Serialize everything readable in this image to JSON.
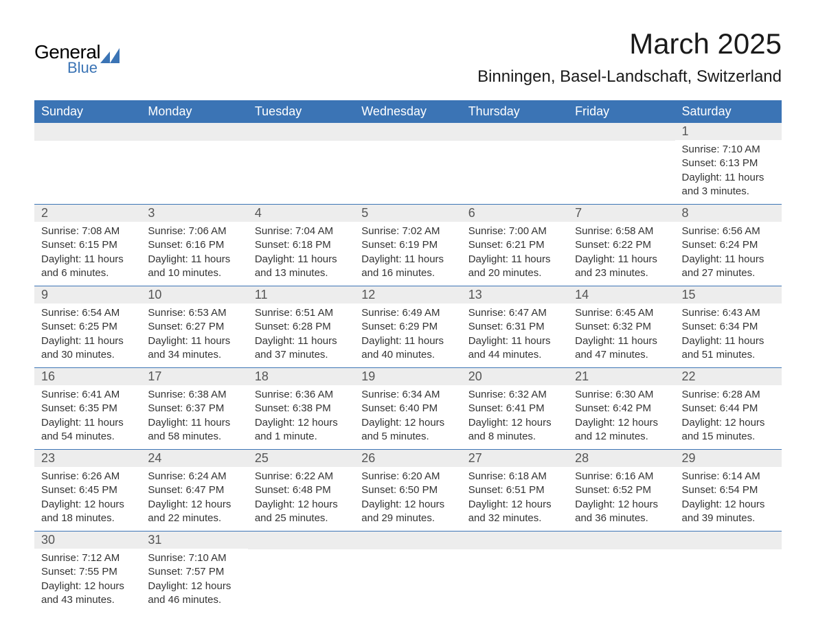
{
  "logo": {
    "text1": "General",
    "text2": "Blue",
    "icon_color": "#3b74b5"
  },
  "header": {
    "title": "March 2025",
    "location": "Binningen, Basel-Landschaft, Switzerland"
  },
  "colors": {
    "header_bg": "#3b74b5",
    "header_text": "#ffffff",
    "day_number_bg": "#ededed",
    "day_number_text": "#555555",
    "body_text": "#333333",
    "border": "#3b74b5"
  },
  "day_headers": [
    "Sunday",
    "Monday",
    "Tuesday",
    "Wednesday",
    "Thursday",
    "Friday",
    "Saturday"
  ],
  "weeks": [
    [
      {
        "empty": true
      },
      {
        "empty": true
      },
      {
        "empty": true
      },
      {
        "empty": true
      },
      {
        "empty": true
      },
      {
        "empty": true
      },
      {
        "day": "1",
        "sunrise": "Sunrise: 7:10 AM",
        "sunset": "Sunset: 6:13 PM",
        "daylight1": "Daylight: 11 hours",
        "daylight2": "and 3 minutes."
      }
    ],
    [
      {
        "day": "2",
        "sunrise": "Sunrise: 7:08 AM",
        "sunset": "Sunset: 6:15 PM",
        "daylight1": "Daylight: 11 hours",
        "daylight2": "and 6 minutes."
      },
      {
        "day": "3",
        "sunrise": "Sunrise: 7:06 AM",
        "sunset": "Sunset: 6:16 PM",
        "daylight1": "Daylight: 11 hours",
        "daylight2": "and 10 minutes."
      },
      {
        "day": "4",
        "sunrise": "Sunrise: 7:04 AM",
        "sunset": "Sunset: 6:18 PM",
        "daylight1": "Daylight: 11 hours",
        "daylight2": "and 13 minutes."
      },
      {
        "day": "5",
        "sunrise": "Sunrise: 7:02 AM",
        "sunset": "Sunset: 6:19 PM",
        "daylight1": "Daylight: 11 hours",
        "daylight2": "and 16 minutes."
      },
      {
        "day": "6",
        "sunrise": "Sunrise: 7:00 AM",
        "sunset": "Sunset: 6:21 PM",
        "daylight1": "Daylight: 11 hours",
        "daylight2": "and 20 minutes."
      },
      {
        "day": "7",
        "sunrise": "Sunrise: 6:58 AM",
        "sunset": "Sunset: 6:22 PM",
        "daylight1": "Daylight: 11 hours",
        "daylight2": "and 23 minutes."
      },
      {
        "day": "8",
        "sunrise": "Sunrise: 6:56 AM",
        "sunset": "Sunset: 6:24 PM",
        "daylight1": "Daylight: 11 hours",
        "daylight2": "and 27 minutes."
      }
    ],
    [
      {
        "day": "9",
        "sunrise": "Sunrise: 6:54 AM",
        "sunset": "Sunset: 6:25 PM",
        "daylight1": "Daylight: 11 hours",
        "daylight2": "and 30 minutes."
      },
      {
        "day": "10",
        "sunrise": "Sunrise: 6:53 AM",
        "sunset": "Sunset: 6:27 PM",
        "daylight1": "Daylight: 11 hours",
        "daylight2": "and 34 minutes."
      },
      {
        "day": "11",
        "sunrise": "Sunrise: 6:51 AM",
        "sunset": "Sunset: 6:28 PM",
        "daylight1": "Daylight: 11 hours",
        "daylight2": "and 37 minutes."
      },
      {
        "day": "12",
        "sunrise": "Sunrise: 6:49 AM",
        "sunset": "Sunset: 6:29 PM",
        "daylight1": "Daylight: 11 hours",
        "daylight2": "and 40 minutes."
      },
      {
        "day": "13",
        "sunrise": "Sunrise: 6:47 AM",
        "sunset": "Sunset: 6:31 PM",
        "daylight1": "Daylight: 11 hours",
        "daylight2": "and 44 minutes."
      },
      {
        "day": "14",
        "sunrise": "Sunrise: 6:45 AM",
        "sunset": "Sunset: 6:32 PM",
        "daylight1": "Daylight: 11 hours",
        "daylight2": "and 47 minutes."
      },
      {
        "day": "15",
        "sunrise": "Sunrise: 6:43 AM",
        "sunset": "Sunset: 6:34 PM",
        "daylight1": "Daylight: 11 hours",
        "daylight2": "and 51 minutes."
      }
    ],
    [
      {
        "day": "16",
        "sunrise": "Sunrise: 6:41 AM",
        "sunset": "Sunset: 6:35 PM",
        "daylight1": "Daylight: 11 hours",
        "daylight2": "and 54 minutes."
      },
      {
        "day": "17",
        "sunrise": "Sunrise: 6:38 AM",
        "sunset": "Sunset: 6:37 PM",
        "daylight1": "Daylight: 11 hours",
        "daylight2": "and 58 minutes."
      },
      {
        "day": "18",
        "sunrise": "Sunrise: 6:36 AM",
        "sunset": "Sunset: 6:38 PM",
        "daylight1": "Daylight: 12 hours",
        "daylight2": "and 1 minute."
      },
      {
        "day": "19",
        "sunrise": "Sunrise: 6:34 AM",
        "sunset": "Sunset: 6:40 PM",
        "daylight1": "Daylight: 12 hours",
        "daylight2": "and 5 minutes."
      },
      {
        "day": "20",
        "sunrise": "Sunrise: 6:32 AM",
        "sunset": "Sunset: 6:41 PM",
        "daylight1": "Daylight: 12 hours",
        "daylight2": "and 8 minutes."
      },
      {
        "day": "21",
        "sunrise": "Sunrise: 6:30 AM",
        "sunset": "Sunset: 6:42 PM",
        "daylight1": "Daylight: 12 hours",
        "daylight2": "and 12 minutes."
      },
      {
        "day": "22",
        "sunrise": "Sunrise: 6:28 AM",
        "sunset": "Sunset: 6:44 PM",
        "daylight1": "Daylight: 12 hours",
        "daylight2": "and 15 minutes."
      }
    ],
    [
      {
        "day": "23",
        "sunrise": "Sunrise: 6:26 AM",
        "sunset": "Sunset: 6:45 PM",
        "daylight1": "Daylight: 12 hours",
        "daylight2": "and 18 minutes."
      },
      {
        "day": "24",
        "sunrise": "Sunrise: 6:24 AM",
        "sunset": "Sunset: 6:47 PM",
        "daylight1": "Daylight: 12 hours",
        "daylight2": "and 22 minutes."
      },
      {
        "day": "25",
        "sunrise": "Sunrise: 6:22 AM",
        "sunset": "Sunset: 6:48 PM",
        "daylight1": "Daylight: 12 hours",
        "daylight2": "and 25 minutes."
      },
      {
        "day": "26",
        "sunrise": "Sunrise: 6:20 AM",
        "sunset": "Sunset: 6:50 PM",
        "daylight1": "Daylight: 12 hours",
        "daylight2": "and 29 minutes."
      },
      {
        "day": "27",
        "sunrise": "Sunrise: 6:18 AM",
        "sunset": "Sunset: 6:51 PM",
        "daylight1": "Daylight: 12 hours",
        "daylight2": "and 32 minutes."
      },
      {
        "day": "28",
        "sunrise": "Sunrise: 6:16 AM",
        "sunset": "Sunset: 6:52 PM",
        "daylight1": "Daylight: 12 hours",
        "daylight2": "and 36 minutes."
      },
      {
        "day": "29",
        "sunrise": "Sunrise: 6:14 AM",
        "sunset": "Sunset: 6:54 PM",
        "daylight1": "Daylight: 12 hours",
        "daylight2": "and 39 minutes."
      }
    ],
    [
      {
        "day": "30",
        "sunrise": "Sunrise: 7:12 AM",
        "sunset": "Sunset: 7:55 PM",
        "daylight1": "Daylight: 12 hours",
        "daylight2": "and 43 minutes."
      },
      {
        "day": "31",
        "sunrise": "Sunrise: 7:10 AM",
        "sunset": "Sunset: 7:57 PM",
        "daylight1": "Daylight: 12 hours",
        "daylight2": "and 46 minutes."
      },
      {
        "empty": true,
        "noBg": true
      },
      {
        "empty": true,
        "noBg": true
      },
      {
        "empty": true,
        "noBg": true
      },
      {
        "empty": true,
        "noBg": true
      },
      {
        "empty": true,
        "noBg": true
      }
    ]
  ]
}
